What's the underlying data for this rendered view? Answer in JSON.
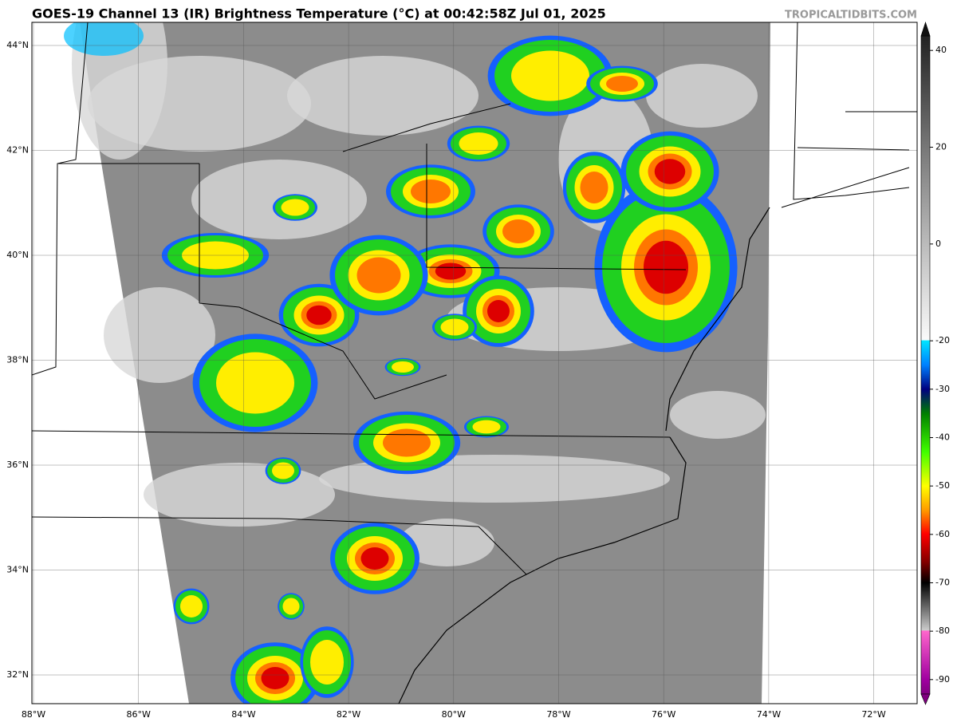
{
  "header": {
    "title": "GOES-19 Channel 13 (IR) Brightness Temperature (°C) at 00:42:58Z Jul 01, 2025",
    "credit": "TROPICALTIDBITS.COM"
  },
  "map": {
    "lat_labels": [
      "44°N",
      "42°N",
      "40°N",
      "38°N",
      "36°N",
      "34°N",
      "32°N"
    ],
    "lon_labels": [
      "88°W",
      "86°W",
      "84°W",
      "82°W",
      "80°W",
      "78°W",
      "76°W",
      "74°W",
      "72°W"
    ]
  },
  "colorbar": {
    "clim": [
      -93,
      43
    ],
    "ticks": [
      40,
      20,
      0,
      -20,
      -30,
      -40,
      -50,
      -60,
      -70,
      -80,
      -90
    ]
  }
}
